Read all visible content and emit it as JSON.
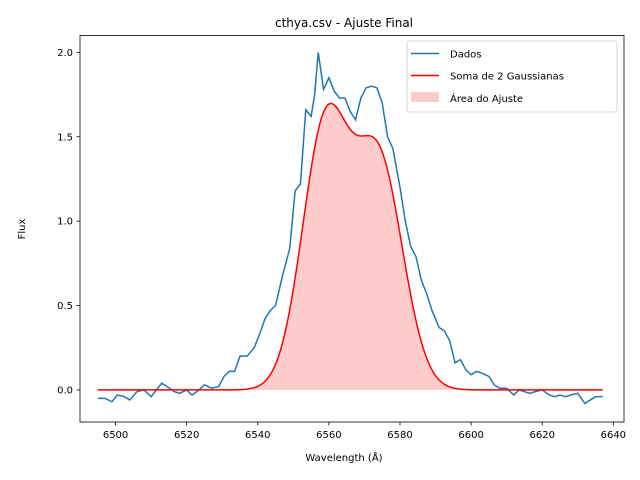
{
  "chart_data": {
    "type": "line",
    "title": "cthya.csv - Ajuste Final",
    "xlabel": "Wavelength (Å)",
    "ylabel": "Flux",
    "xlim": [
      6490,
      6643
    ],
    "ylim": [
      -0.19,
      2.1
    ],
    "xticks": [
      6500,
      6520,
      6540,
      6560,
      6580,
      6600,
      6620,
      6640
    ],
    "yticks": [
      0.0,
      0.5,
      1.0,
      1.5,
      2.0
    ],
    "xtick_labels": [
      "6500",
      "6520",
      "6540",
      "6560",
      "6580",
      "6600",
      "6620",
      "6640"
    ],
    "ytick_labels": [
      "0.0",
      "0.5",
      "1.0",
      "1.5",
      "2.0"
    ],
    "grid": false,
    "legend_position": "top-right",
    "colors": {
      "data": "#1f77b4",
      "fit": "#ff0000",
      "area": "#ff9999"
    },
    "series": [
      {
        "name": "Dados",
        "x": [
          6495,
          6497,
          6499,
          6500.5,
          6502.5,
          6504,
          6506,
          6508,
          6510,
          6511.5,
          6513,
          6514.5,
          6516.5,
          6518,
          6520,
          6521.5,
          6523.5,
          6525,
          6527,
          6529,
          6530.5,
          6532,
          6533.5,
          6535,
          6537,
          6539,
          6540.5,
          6542,
          6543.5,
          6545,
          6547,
          6549,
          6550.5,
          6552,
          6553.5,
          6555,
          6556,
          6557,
          6558.5,
          6560,
          6561.5,
          6563,
          6564.5,
          6566,
          6567.5,
          6569,
          6570.5,
          6572,
          6573.5,
          6575,
          6576.5,
          6578,
          6580,
          6581.5,
          6583,
          6584.5,
          6586,
          6587.5,
          6589,
          6591,
          6592.5,
          6594,
          6595.5,
          6597,
          6598.5,
          6600,
          6601.5,
          6603,
          6605,
          6606.5,
          6608,
          6610,
          6612,
          6613.5,
          6615,
          6616.5,
          6618,
          6620,
          6622,
          6623.5,
          6625,
          6626.5,
          6628,
          6630,
          6632,
          6633.5,
          6635,
          6637
        ],
        "y": [
          -0.05,
          -0.05,
          -0.07,
          -0.03,
          -0.04,
          -0.06,
          -0.01,
          0.0,
          -0.04,
          0.0,
          0.04,
          0.02,
          -0.01,
          -0.02,
          0.0,
          -0.03,
          0.0,
          0.03,
          0.01,
          0.02,
          0.08,
          0.11,
          0.11,
          0.2,
          0.2,
          0.25,
          0.33,
          0.42,
          0.47,
          0.5,
          0.68,
          0.84,
          1.18,
          1.22,
          1.66,
          1.62,
          1.75,
          2.0,
          1.78,
          1.85,
          1.77,
          1.73,
          1.73,
          1.65,
          1.6,
          1.73,
          1.79,
          1.8,
          1.79,
          1.7,
          1.5,
          1.43,
          1.2,
          1.0,
          0.85,
          0.79,
          0.65,
          0.57,
          0.47,
          0.37,
          0.35,
          0.29,
          0.16,
          0.18,
          0.12,
          0.09,
          0.11,
          0.1,
          0.08,
          0.03,
          0.01,
          0.01,
          -0.03,
          0.0,
          -0.01,
          -0.02,
          -0.01,
          0.0,
          -0.03,
          -0.04,
          -0.03,
          -0.04,
          -0.03,
          -0.02,
          -0.08,
          -0.06,
          -0.04,
          -0.04
        ]
      },
      {
        "name": "Soma de 2 Gaussianas",
        "components": [
          {
            "amplitude": 1.55,
            "center": 6559.0,
            "sigma": 6.5
          },
          {
            "amplitude": 1.35,
            "center": 6574.0,
            "sigma": 6.8
          }
        ],
        "x_range": [
          6495,
          6637
        ]
      },
      {
        "name": "Área do Ajuste",
        "fill_of": "Soma de 2 Gaussianas"
      }
    ]
  }
}
